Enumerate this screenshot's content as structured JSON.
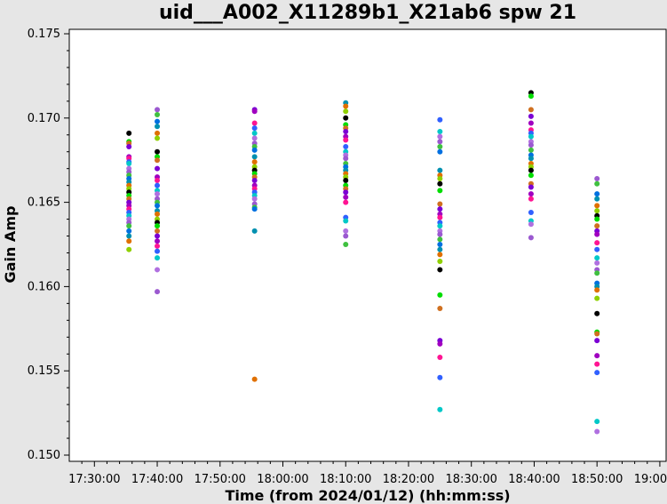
{
  "chart_data": {
    "type": "scatter",
    "title": "uid___A002_X11289b1_X21ab6 spw 21",
    "xlabel": "Time (from 2024/01/12) (hh:mm:ss)",
    "ylabel": "Gain Amp",
    "xlim": [
      "17:26:00",
      "19:01:00"
    ],
    "ylim": [
      0.15,
      0.175
    ],
    "x_ticks": [
      "17:30:00",
      "17:40:00",
      "17:50:00",
      "18:00:00",
      "18:10:00",
      "18:20:00",
      "18:30:00",
      "18:40:00",
      "18:50:00",
      "19:00:00"
    ],
    "y_ticks": [
      "0.150",
      "0.155",
      "0.160",
      "0.165",
      "0.170",
      "0.175"
    ],
    "grid": false,
    "colors": [
      "#000000",
      "#e07000",
      "#0070e0",
      "#9b59d0",
      "#00c8c8",
      "#ff1493",
      "#7b00d4",
      "#00dd00",
      "#8fd000",
      "#0090b0",
      "#40c040",
      "#b070e0",
      "#3060ff",
      "#a000c0",
      "#d07020"
    ],
    "series": [
      {
        "x": "17:35:30",
        "values": [
          0.1691,
          0.1686,
          0.1685,
          0.1683,
          0.1677,
          0.1676,
          0.1674,
          0.1673,
          0.167,
          0.1668,
          0.1666,
          0.1664,
          0.1662,
          0.166,
          0.1658,
          0.1656,
          0.1654,
          0.1652,
          0.165,
          0.1648,
          0.1646,
          0.1644,
          0.1642,
          0.164,
          0.1638,
          0.1636,
          0.1633,
          0.163,
          0.1627,
          0.1622
        ]
      },
      {
        "x": "17:40:00",
        "values": [
          0.1705,
          0.1702,
          0.1698,
          0.1695,
          0.1691,
          0.1688,
          0.168,
          0.1677,
          0.1675,
          0.167,
          0.1665,
          0.1663,
          0.166,
          0.1657,
          0.1655,
          0.1652,
          0.165,
          0.1648,
          0.1645,
          0.1643,
          0.164,
          0.1638,
          0.1636,
          0.1633,
          0.163,
          0.1627,
          0.1624,
          0.1621,
          0.1617,
          0.161,
          0.1597
        ]
      },
      {
        "x": "17:55:30",
        "values": [
          0.1705,
          0.1704,
          0.1697,
          0.1694,
          0.1691,
          0.1688,
          0.1685,
          0.1683,
          0.1681,
          0.1677,
          0.1674,
          0.1671,
          0.1669,
          0.1667,
          0.1665,
          0.1663,
          0.166,
          0.1658,
          0.1656,
          0.1654,
          0.1652,
          0.1649,
          0.1647,
          0.1646,
          0.1633,
          0.1545
        ]
      },
      {
        "x": "18:10:00",
        "values": [
          0.1709,
          0.1707,
          0.1704,
          0.17,
          0.1696,
          0.1694,
          0.1692,
          0.1689,
          0.1687,
          0.1683,
          0.168,
          0.1678,
          0.1676,
          0.1673,
          0.1671,
          0.1669,
          0.1667,
          0.1665,
          0.1663,
          0.166,
          0.1658,
          0.1656,
          0.1653,
          0.165,
          0.1641,
          0.1639,
          0.1633,
          0.163,
          0.1625
        ]
      },
      {
        "x": "18:25:00",
        "values": [
          0.1699,
          0.1692,
          0.1689,
          0.1686,
          0.1683,
          0.168,
          0.1669,
          0.1666,
          0.1664,
          0.1661,
          0.1657,
          0.1649,
          0.1646,
          0.1643,
          0.1641,
          0.1638,
          0.1636,
          0.1633,
          0.1631,
          0.1628,
          0.1625,
          0.1622,
          0.1619,
          0.1615,
          0.161,
          0.1595,
          0.1587,
          0.1568,
          0.1566,
          0.1558,
          0.1546,
          0.1527
        ]
      },
      {
        "x": "18:39:30",
        "values": [
          0.1715,
          0.1713,
          0.1705,
          0.1701,
          0.1697,
          0.1693,
          0.1691,
          0.1689,
          0.1686,
          0.1684,
          0.1681,
          0.1678,
          0.1676,
          0.1673,
          0.1671,
          0.1669,
          0.1666,
          0.1661,
          0.1659,
          0.1655,
          0.1652,
          0.1644,
          0.1639,
          0.1637,
          0.1629
        ]
      },
      {
        "x": "18:50:00",
        "values": [
          0.1664,
          0.1661,
          0.1655,
          0.1652,
          0.1648,
          0.1645,
          0.1642,
          0.164,
          0.1636,
          0.1633,
          0.1631,
          0.1626,
          0.1622,
          0.1617,
          0.1614,
          0.161,
          0.1608,
          0.1602,
          0.16,
          0.1598,
          0.1593,
          0.1584,
          0.1573,
          0.1572,
          0.1568,
          0.1559,
          0.1554,
          0.1549,
          0.152,
          0.1514
        ]
      }
    ]
  }
}
